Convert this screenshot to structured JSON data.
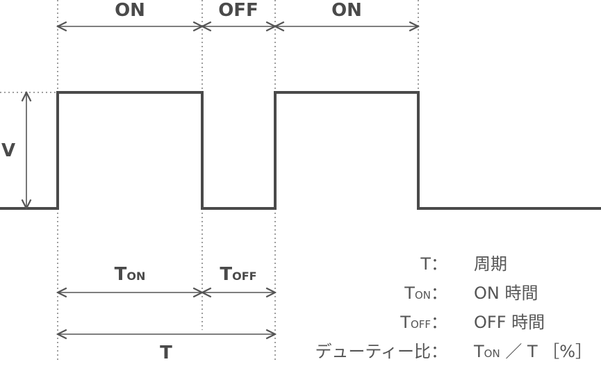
{
  "top_labels": {
    "on1": "ON",
    "off": "OFF",
    "on2": "ON"
  },
  "amplitude_label": "V",
  "lower_labels": {
    "ton_main": "T",
    "ton_sub": "ON",
    "toff_main": "T",
    "toff_sub": "OFF",
    "period": "T"
  },
  "legend": [
    {
      "term": "T",
      "term_sub": "",
      "sep": "：",
      "def": "周期"
    },
    {
      "term": "T",
      "term_sub": "ON",
      "sep": "：",
      "def": "ON 時間"
    },
    {
      "term": "T",
      "term_sub": "OFF",
      "sep": "：",
      "def": "OFF 時間"
    },
    {
      "term": "デューティー比",
      "term_sub": "",
      "sep": "：",
      "def_main": "T",
      "def_sub": "ON",
      "def_rest": " ／ T ［%］"
    }
  ],
  "colors": {
    "line": "#4a4a4a",
    "text": "#4a4a4a"
  }
}
